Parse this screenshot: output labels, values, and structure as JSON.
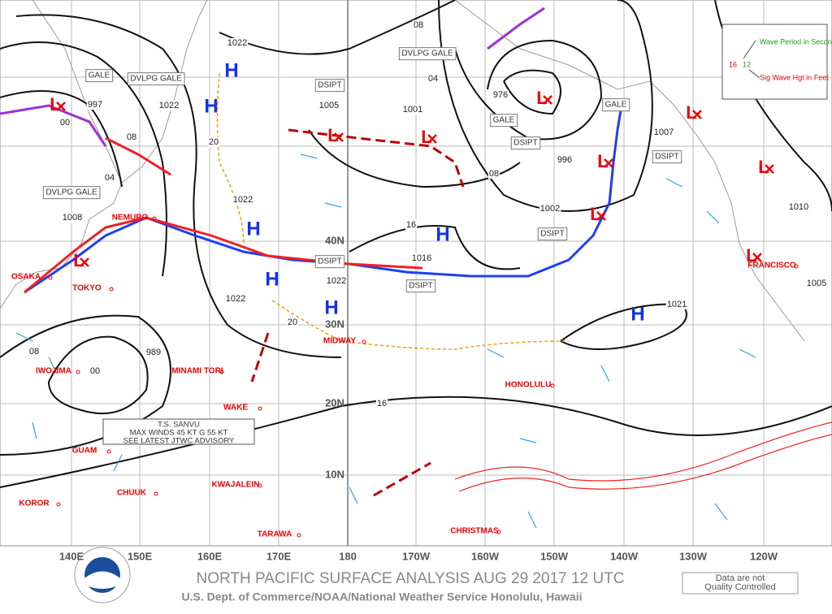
{
  "title": "NORTH PACIFIC SURFACE ANALYSIS AUG 29 2017 12 UTC",
  "subtitle": "U.S. Dept. of Commerce/NOAA/National Weather Service Honolulu, Hawaii",
  "disclaimer": [
    "Data are not",
    "Quality Controlled"
  ],
  "longitudes": [
    "140E",
    "150E",
    "160E",
    "170E",
    "180",
    "170W",
    "160W",
    "150W",
    "140W",
    "130W",
    "120W"
  ],
  "latitudes": [
    "40N",
    "30N",
    "20N",
    "10N"
  ],
  "places": [
    "OSAKA",
    "TOKYO",
    "NEMURO",
    "IWOJIMA",
    "MINAMI TORI",
    "WAKE",
    "GUAM",
    "KOROR",
    "CHUUK",
    "KWAJALEIN",
    "TARAWA",
    "MIDWAY",
    "HONOLULU",
    "CHRISTMAS",
    "FRANCISCO"
  ],
  "highs": [
    "H",
    "H",
    "H",
    "H",
    "H",
    "H",
    "H"
  ],
  "lows": [
    "L",
    "L",
    "L",
    "L",
    "L",
    "L",
    "L",
    "L",
    "L",
    "L"
  ],
  "isobar_labels": [
    "997",
    "1022",
    "1022",
    "1005",
    "1001",
    "976",
    "996",
    "1002",
    "1007",
    "1016",
    "1022",
    "1022",
    "1021",
    "989",
    "1008",
    "1010",
    "1005",
    "08",
    "04",
    "08",
    "16",
    "16",
    "20",
    "1022",
    "20",
    "08",
    "00",
    "08",
    "04",
    "00"
  ],
  "annotations": [
    "GALE",
    "DVLPG GALE",
    "DVLPG GALE",
    "DSIPT",
    "DVLPG GALE",
    "GALE",
    "DSIPT",
    "GALE",
    "DSIPT",
    "DSIPT",
    "DSIPT",
    "DSIPT"
  ],
  "legend": {
    "period": "Wave Period in Seconds",
    "height": "Sig Wave Hgt in Feet",
    "sample_height": "16",
    "sample_period": "12"
  },
  "storm_box": [
    "T.S. SANVU",
    "MAX WINDS 45 KT G 55 KT",
    "SEE LATEST JTWC ADVISORY"
  ]
}
